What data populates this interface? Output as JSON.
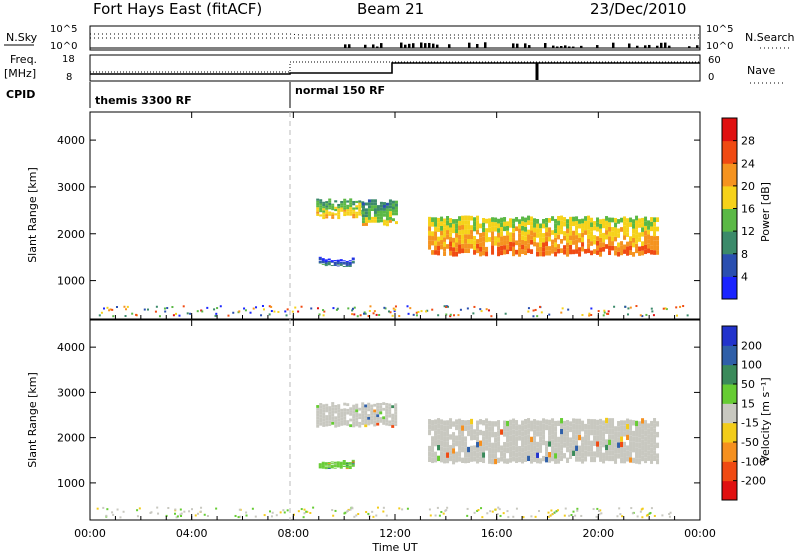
{
  "header": {
    "station": "Fort Hays East (fitACF)",
    "beam": "Beam 21",
    "date": "23/Dec/2010"
  },
  "top_panels": {
    "nsky_label": "N.Sky",
    "nsky_ticks": [
      "10^5",
      "10^0"
    ],
    "nsearch_label": "N.Search",
    "nsearch_ticks": [
      "10^5",
      "10^0"
    ],
    "freq_label": "Freq.",
    "freq_unit": "[MHz]",
    "freq_ticks": [
      "18",
      "8"
    ],
    "nave_label": "Nave",
    "nave_ticks": [
      "60",
      "0"
    ],
    "cpid_label": "CPID",
    "cpid_modes": [
      "themis 3300 RF",
      "normal 150 RF"
    ]
  },
  "chart_data": [
    {
      "type": "heatmap",
      "title": "",
      "xlabel": "Time UT",
      "ylabel": "Slant Range [km]",
      "xlim": [
        0,
        24
      ],
      "x_ticks": [
        "00:00",
        "04:00",
        "08:00",
        "12:00",
        "16:00",
        "20:00",
        "00:00"
      ],
      "ylim": [
        180,
        4600
      ],
      "y_ticks": [
        "1000",
        "2000",
        "3000",
        "4000"
      ],
      "colorbar": {
        "label": "Power [dB]",
        "ticks": [
          "4",
          "8",
          "12",
          "16",
          "20",
          "24",
          "28"
        ],
        "colors": [
          "#1a24ff",
          "#2a4fb0",
          "#3b8a6a",
          "#5ab845",
          "#f6d21a",
          "#f5931f",
          "#f04a12",
          "#e01010"
        ],
        "range": [
          0,
          32
        ]
      },
      "echo_regions": [
        {
          "t_start": 8.9,
          "t_end": 10.7,
          "r_low": 2350,
          "r_high": 2720,
          "value": 16
        },
        {
          "t_start": 10.7,
          "t_end": 12.0,
          "r_low": 2200,
          "r_high": 2700,
          "value": 14
        },
        {
          "t_start": 9.0,
          "t_end": 10.3,
          "r_low": 1330,
          "r_high": 1470,
          "value": 6
        },
        {
          "t_start": 13.3,
          "t_end": 22.3,
          "r_low": 1550,
          "r_high": 2350,
          "value": 20
        }
      ]
    },
    {
      "type": "heatmap",
      "title": "",
      "xlabel": "Time UT",
      "ylabel": "Slant Range [km]",
      "xlim": [
        0,
        24
      ],
      "x_ticks": [
        "00:00",
        "04:00",
        "08:00",
        "12:00",
        "16:00",
        "20:00",
        "00:00"
      ],
      "ylim": [
        180,
        4600
      ],
      "y_ticks": [
        "1000",
        "2000",
        "3000",
        "4000"
      ],
      "colorbar": {
        "label": "Velocity [m s⁻¹]",
        "ticks": [
          "200",
          "100",
          "50",
          "15",
          "-15",
          "-50",
          "-100",
          "-200"
        ],
        "colors": [
          "#2233cc",
          "#2f5fa8",
          "#3a8a5a",
          "#66cc33",
          "#c8c8c0",
          "#f2cc1a",
          "#f5901f",
          "#f04a12",
          "#e01010"
        ],
        "range": [
          -250,
          250
        ]
      },
      "echo_regions": [
        {
          "t_start": 8.9,
          "t_end": 12.0,
          "r_low": 2250,
          "r_high": 2750,
          "value": 0
        },
        {
          "t_start": 9.0,
          "t_end": 10.3,
          "r_low": 1330,
          "r_high": 1480,
          "value": 40
        },
        {
          "t_start": 13.3,
          "t_end": 22.3,
          "r_low": 1450,
          "r_high": 2400,
          "value": 0
        }
      ]
    }
  ],
  "footer": {
    "xlabel": "Time UT"
  }
}
